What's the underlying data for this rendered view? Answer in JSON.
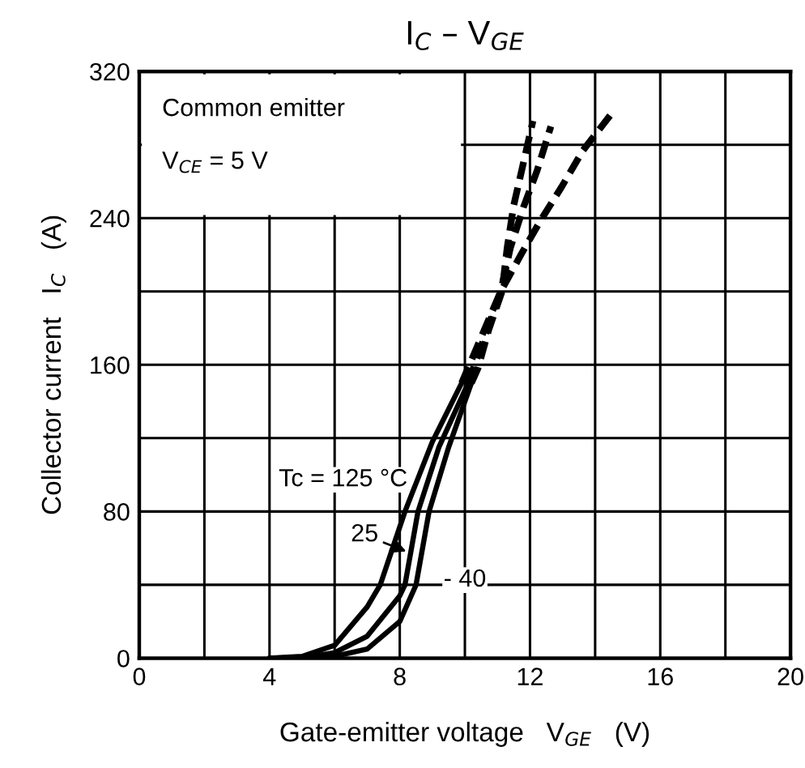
{
  "chart_data": {
    "type": "line",
    "title": "I$_{C}$ – V$_{GE}$",
    "xlabel": "Gate-emitter voltage   V$_{GE}$   (V)",
    "ylabel": "Collector current   I$_{C}$   (A)",
    "series": [
      {
        "color": "#000000",
        "line_style": "solid",
        "x": [
          4,
          5,
          6,
          7,
          7.4,
          8.16,
          9,
          9.9
        ],
        "values": [
          0,
          1,
          7,
          28,
          40,
          80,
          118,
          150
        ]
      },
      {
        "color": "#000000",
        "line_style": "solid",
        "x": [
          4,
          5,
          6,
          7,
          8,
          8.16,
          8.56,
          9.2,
          10.1
        ],
        "values": [
          0,
          0,
          3,
          12,
          34,
          40,
          80,
          115,
          150
        ]
      },
      {
        "color": "#000000",
        "line_style": "solid",
        "x": [
          4,
          6,
          7,
          8,
          8.5,
          8.9,
          9.5,
          10.2
        ],
        "values": [
          0,
          1,
          5,
          20,
          40,
          80,
          115,
          150
        ]
      },
      {
        "color": "#000000",
        "line_style": "dashed",
        "x": [
          9.9,
          10.5,
          11.1,
          11.72,
          12.3,
          12.97,
          13.63,
          14.46
        ],
        "values": [
          150,
          175,
          200,
          220,
          238,
          257,
          277,
          296
        ]
      },
      {
        "color": "#000000",
        "line_style": "dashed",
        "x": [
          10.1,
          10.6,
          11.1,
          11.4,
          11.8,
          12.22,
          12.64
        ],
        "values": [
          150,
          175,
          200,
          224,
          246,
          266,
          290
        ]
      },
      {
        "color": "#000000",
        "line_style": "dashed",
        "x": [
          10.2,
          10.4,
          10.73,
          11.14,
          11.3,
          11.5,
          11.77,
          12.09
        ],
        "values": [
          150,
          158,
          179,
          200,
          224,
          247,
          268,
          293
        ]
      }
    ],
    "xlim": [
      0,
      20
    ],
    "ylim": [
      0,
      320
    ],
    "xticks": [
      0,
      {
        "value": 2,
        "label": null
      },
      4,
      {
        "value": 6,
        "label": null
      },
      8,
      {
        "value": 10,
        "label": null
      },
      12,
      {
        "value": 14,
        "label": null
      },
      16,
      {
        "value": 18,
        "label": null
      },
      20
    ],
    "yticks": [
      0,
      {
        "value": 40,
        "label": null
      },
      80,
      {
        "value": 120,
        "label": null
      },
      160,
      {
        "value": 200,
        "label": null
      },
      240,
      {
        "value": 280,
        "label": null
      },
      320
    ],
    "grid": true,
    "annotations": [
      "Common emitter",
      "V$_{CE}$ = 5 V",
      "Tc = 125 °C",
      "25",
      "- 40"
    ]
  }
}
